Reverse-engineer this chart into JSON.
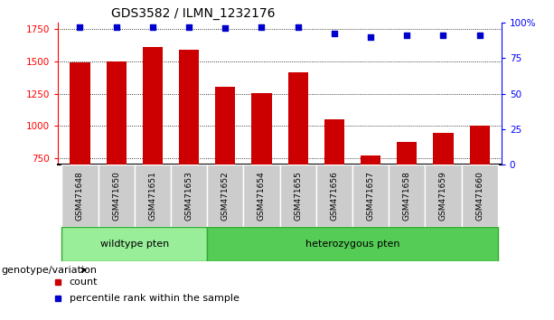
{
  "title": "GDS3582 / ILMN_1232176",
  "samples": [
    "GSM471648",
    "GSM471650",
    "GSM471651",
    "GSM471653",
    "GSM471652",
    "GSM471654",
    "GSM471655",
    "GSM471656",
    "GSM471657",
    "GSM471658",
    "GSM471659",
    "GSM471660"
  ],
  "counts": [
    1490,
    1500,
    1610,
    1590,
    1305,
    1255,
    1415,
    1050,
    775,
    875,
    950,
    1005
  ],
  "percentiles": [
    97,
    97,
    97,
    97,
    96,
    97,
    97,
    92,
    90,
    91,
    91,
    91
  ],
  "ylim_left": [
    700,
    1800
  ],
  "ylim_right": [
    0,
    100
  ],
  "yticks_left": [
    750,
    1000,
    1250,
    1500,
    1750
  ],
  "yticks_right": [
    0,
    25,
    50,
    75,
    100
  ],
  "bar_color": "#cc0000",
  "dot_color": "#0000cc",
  "group1_label": "wildtype pten",
  "group2_label": "heterozygous pten",
  "group1_n": 4,
  "group2_n": 8,
  "group1_color": "#99ee99",
  "group2_color": "#55cc55",
  "legend_count": "count",
  "legend_percentile": "percentile rank within the sample",
  "genotype_label": "genotype/variation",
  "cell_bg": "#cccccc",
  "plot_bg": "#ffffff",
  "title_fontsize": 10,
  "tick_fontsize": 7.5,
  "sample_fontsize": 6.5,
  "label_fontsize": 8
}
